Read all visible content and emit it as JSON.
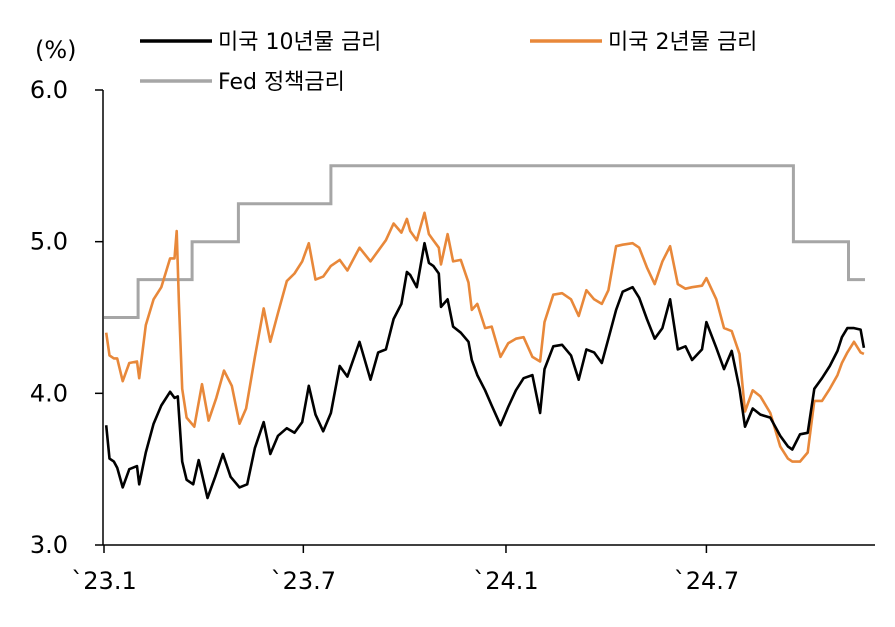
{
  "chart_data": {
    "type": "line",
    "title": "",
    "unit_label": "(%)",
    "ylim": [
      3.0,
      6.0
    ],
    "yticks": [
      "3.0",
      "4.0",
      "5.0",
      "6.0"
    ],
    "xlim": [
      "2023-01-01",
      "2024-11-22"
    ],
    "xticks": [
      {
        "date": "2023-01-01",
        "label": "`23.1"
      },
      {
        "date": "2023-07-01",
        "label": "`23.7"
      },
      {
        "date": "2024-01-01",
        "label": "`24.1"
      },
      {
        "date": "2024-07-01",
        "label": "`24.7"
      }
    ],
    "grid": false,
    "legend_position": "top",
    "series": [
      {
        "name": "미국 10년물 금리",
        "color": "#000000",
        "points": [
          [
            "2023-01-03",
            3.79
          ],
          [
            "2023-01-06",
            3.57
          ],
          [
            "2023-01-10",
            3.55
          ],
          [
            "2023-01-13",
            3.51
          ],
          [
            "2023-01-18",
            3.38
          ],
          [
            "2023-01-24",
            3.5
          ],
          [
            "2023-01-31",
            3.52
          ],
          [
            "2023-02-02",
            3.4
          ],
          [
            "2023-02-08",
            3.61
          ],
          [
            "2023-02-15",
            3.8
          ],
          [
            "2023-02-22",
            3.92
          ],
          [
            "2023-03-02",
            4.01
          ],
          [
            "2023-03-06",
            3.97
          ],
          [
            "2023-03-09",
            3.98
          ],
          [
            "2023-03-13",
            3.55
          ],
          [
            "2023-03-17",
            3.43
          ],
          [
            "2023-03-23",
            3.4
          ],
          [
            "2023-03-28",
            3.56
          ],
          [
            "2023-04-05",
            3.31
          ],
          [
            "2023-04-12",
            3.45
          ],
          [
            "2023-04-19",
            3.6
          ],
          [
            "2023-04-26",
            3.45
          ],
          [
            "2023-05-04",
            3.38
          ],
          [
            "2023-05-11",
            3.4
          ],
          [
            "2023-05-18",
            3.64
          ],
          [
            "2023-05-26",
            3.81
          ],
          [
            "2023-06-01",
            3.6
          ],
          [
            "2023-06-08",
            3.72
          ],
          [
            "2023-06-16",
            3.77
          ],
          [
            "2023-06-23",
            3.74
          ],
          [
            "2023-06-30",
            3.81
          ],
          [
            "2023-07-06",
            4.05
          ],
          [
            "2023-07-12",
            3.86
          ],
          [
            "2023-07-19",
            3.75
          ],
          [
            "2023-07-26",
            3.87
          ],
          [
            "2023-08-03",
            4.18
          ],
          [
            "2023-08-10",
            4.11
          ],
          [
            "2023-08-21",
            4.34
          ],
          [
            "2023-08-31",
            4.09
          ],
          [
            "2023-09-07",
            4.27
          ],
          [
            "2023-09-14",
            4.29
          ],
          [
            "2023-09-21",
            4.49
          ],
          [
            "2023-09-28",
            4.59
          ],
          [
            "2023-10-03",
            4.8
          ],
          [
            "2023-10-06",
            4.78
          ],
          [
            "2023-10-12",
            4.7
          ],
          [
            "2023-10-19",
            4.99
          ],
          [
            "2023-10-23",
            4.86
          ],
          [
            "2023-10-27",
            4.84
          ],
          [
            "2023-11-01",
            4.79
          ],
          [
            "2023-11-03",
            4.57
          ],
          [
            "2023-11-09",
            4.62
          ],
          [
            "2023-11-14",
            4.44
          ],
          [
            "2023-11-21",
            4.4
          ],
          [
            "2023-11-28",
            4.34
          ],
          [
            "2023-12-01",
            4.22
          ],
          [
            "2023-12-06",
            4.12
          ],
          [
            "2023-12-13",
            4.02
          ],
          [
            "2023-12-19",
            3.92
          ],
          [
            "2023-12-27",
            3.79
          ],
          [
            "2024-01-03",
            3.91
          ],
          [
            "2024-01-10",
            4.02
          ],
          [
            "2024-01-17",
            4.1
          ],
          [
            "2024-01-25",
            4.12
          ],
          [
            "2024-02-01",
            3.87
          ],
          [
            "2024-02-05",
            4.16
          ],
          [
            "2024-02-13",
            4.31
          ],
          [
            "2024-02-21",
            4.32
          ],
          [
            "2024-02-29",
            4.25
          ],
          [
            "2024-03-07",
            4.09
          ],
          [
            "2024-03-14",
            4.29
          ],
          [
            "2024-03-21",
            4.27
          ],
          [
            "2024-03-28",
            4.2
          ],
          [
            "2024-04-03",
            4.36
          ],
          [
            "2024-04-10",
            4.55
          ],
          [
            "2024-04-16",
            4.67
          ],
          [
            "2024-04-25",
            4.7
          ],
          [
            "2024-05-01",
            4.63
          ],
          [
            "2024-05-08",
            4.49
          ],
          [
            "2024-05-15",
            4.36
          ],
          [
            "2024-05-22",
            4.43
          ],
          [
            "2024-05-29",
            4.62
          ],
          [
            "2024-06-05",
            4.29
          ],
          [
            "2024-06-12",
            4.31
          ],
          [
            "2024-06-18",
            4.22
          ],
          [
            "2024-06-27",
            4.29
          ],
          [
            "2024-07-01",
            4.47
          ],
          [
            "2024-07-10",
            4.3
          ],
          [
            "2024-07-17",
            4.16
          ],
          [
            "2024-07-24",
            4.28
          ],
          [
            "2024-07-31",
            4.03
          ],
          [
            "2024-08-05",
            3.78
          ],
          [
            "2024-08-12",
            3.9
          ],
          [
            "2024-08-19",
            3.86
          ],
          [
            "2024-08-28",
            3.84
          ],
          [
            "2024-09-06",
            3.72
          ],
          [
            "2024-09-13",
            3.65
          ],
          [
            "2024-09-17",
            3.63
          ],
          [
            "2024-09-24",
            3.73
          ],
          [
            "2024-10-01",
            3.74
          ],
          [
            "2024-10-07",
            4.03
          ],
          [
            "2024-10-14",
            4.1
          ],
          [
            "2024-10-21",
            4.18
          ],
          [
            "2024-10-28",
            4.28
          ],
          [
            "2024-11-01",
            4.37
          ],
          [
            "2024-11-06",
            4.43
          ],
          [
            "2024-11-12",
            4.43
          ],
          [
            "2024-11-18",
            4.42
          ],
          [
            "2024-11-21",
            4.3
          ]
        ]
      },
      {
        "name": "미국 2년물 금리",
        "color": "#E8883A",
        "points": [
          [
            "2023-01-03",
            4.4
          ],
          [
            "2023-01-06",
            4.25
          ],
          [
            "2023-01-10",
            4.23
          ],
          [
            "2023-01-13",
            4.23
          ],
          [
            "2023-01-18",
            4.08
          ],
          [
            "2023-01-24",
            4.2
          ],
          [
            "2023-01-31",
            4.21
          ],
          [
            "2023-02-02",
            4.1
          ],
          [
            "2023-02-08",
            4.45
          ],
          [
            "2023-02-15",
            4.62
          ],
          [
            "2023-02-22",
            4.7
          ],
          [
            "2023-03-02",
            4.89
          ],
          [
            "2023-03-06",
            4.89
          ],
          [
            "2023-03-08",
            5.07
          ],
          [
            "2023-03-10",
            4.6
          ],
          [
            "2023-03-13",
            4.03
          ],
          [
            "2023-03-17",
            3.84
          ],
          [
            "2023-03-24",
            3.78
          ],
          [
            "2023-03-31",
            4.06
          ],
          [
            "2023-04-06",
            3.82
          ],
          [
            "2023-04-13",
            3.97
          ],
          [
            "2023-04-20",
            4.15
          ],
          [
            "2023-04-27",
            4.05
          ],
          [
            "2023-05-04",
            3.8
          ],
          [
            "2023-05-10",
            3.9
          ],
          [
            "2023-05-18",
            4.24
          ],
          [
            "2023-05-26",
            4.56
          ],
          [
            "2023-06-01",
            4.34
          ],
          [
            "2023-06-08",
            4.53
          ],
          [
            "2023-06-16",
            4.74
          ],
          [
            "2023-06-23",
            4.79
          ],
          [
            "2023-06-30",
            4.87
          ],
          [
            "2023-07-06",
            4.99
          ],
          [
            "2023-07-12",
            4.75
          ],
          [
            "2023-07-19",
            4.77
          ],
          [
            "2023-07-26",
            4.84
          ],
          [
            "2023-08-03",
            4.88
          ],
          [
            "2023-08-10",
            4.81
          ],
          [
            "2023-08-21",
            4.96
          ],
          [
            "2023-08-31",
            4.87
          ],
          [
            "2023-09-07",
            4.94
          ],
          [
            "2023-09-14",
            5.01
          ],
          [
            "2023-09-21",
            5.12
          ],
          [
            "2023-09-28",
            5.06
          ],
          [
            "2023-10-03",
            5.15
          ],
          [
            "2023-10-06",
            5.07
          ],
          [
            "2023-10-12",
            5.01
          ],
          [
            "2023-10-19",
            5.19
          ],
          [
            "2023-10-23",
            5.05
          ],
          [
            "2023-10-27",
            5.01
          ],
          [
            "2023-11-01",
            4.96
          ],
          [
            "2023-11-03",
            4.85
          ],
          [
            "2023-11-09",
            5.05
          ],
          [
            "2023-11-14",
            4.87
          ],
          [
            "2023-11-21",
            4.88
          ],
          [
            "2023-11-28",
            4.73
          ],
          [
            "2023-12-01",
            4.55
          ],
          [
            "2023-12-06",
            4.59
          ],
          [
            "2023-12-13",
            4.43
          ],
          [
            "2023-12-19",
            4.44
          ],
          [
            "2023-12-27",
            4.24
          ],
          [
            "2024-01-03",
            4.33
          ],
          [
            "2024-01-10",
            4.36
          ],
          [
            "2024-01-17",
            4.37
          ],
          [
            "2024-01-25",
            4.24
          ],
          [
            "2024-02-01",
            4.21
          ],
          [
            "2024-02-05",
            4.47
          ],
          [
            "2024-02-13",
            4.65
          ],
          [
            "2024-02-21",
            4.66
          ],
          [
            "2024-02-29",
            4.62
          ],
          [
            "2024-03-07",
            4.51
          ],
          [
            "2024-03-14",
            4.68
          ],
          [
            "2024-03-21",
            4.62
          ],
          [
            "2024-03-28",
            4.59
          ],
          [
            "2024-04-03",
            4.68
          ],
          [
            "2024-04-10",
            4.97
          ],
          [
            "2024-04-16",
            4.98
          ],
          [
            "2024-04-25",
            4.99
          ],
          [
            "2024-05-01",
            4.96
          ],
          [
            "2024-05-08",
            4.83
          ],
          [
            "2024-05-15",
            4.72
          ],
          [
            "2024-05-22",
            4.87
          ],
          [
            "2024-05-29",
            4.97
          ],
          [
            "2024-06-05",
            4.72
          ],
          [
            "2024-06-12",
            4.69
          ],
          [
            "2024-06-18",
            4.7
          ],
          [
            "2024-06-27",
            4.71
          ],
          [
            "2024-07-01",
            4.76
          ],
          [
            "2024-07-10",
            4.62
          ],
          [
            "2024-07-17",
            4.43
          ],
          [
            "2024-07-24",
            4.41
          ],
          [
            "2024-07-31",
            4.26
          ],
          [
            "2024-08-05",
            3.88
          ],
          [
            "2024-08-12",
            4.02
          ],
          [
            "2024-08-19",
            3.98
          ],
          [
            "2024-08-28",
            3.87
          ],
          [
            "2024-09-06",
            3.65
          ],
          [
            "2024-09-13",
            3.57
          ],
          [
            "2024-09-17",
            3.55
          ],
          [
            "2024-09-24",
            3.55
          ],
          [
            "2024-10-01",
            3.61
          ],
          [
            "2024-10-07",
            3.95
          ],
          [
            "2024-10-14",
            3.95
          ],
          [
            "2024-10-21",
            4.03
          ],
          [
            "2024-10-28",
            4.12
          ],
          [
            "2024-11-01",
            4.2
          ],
          [
            "2024-11-06",
            4.27
          ],
          [
            "2024-11-12",
            4.34
          ],
          [
            "2024-11-18",
            4.27
          ],
          [
            "2024-11-21",
            4.26
          ]
        ]
      },
      {
        "name": "Fed 정책금리",
        "color": "#A6A6A6",
        "step": true,
        "points": [
          [
            "2023-01-01",
            4.5
          ],
          [
            "2023-02-01",
            4.75
          ],
          [
            "2023-03-22",
            5.0
          ],
          [
            "2023-05-03",
            5.25
          ],
          [
            "2023-07-26",
            5.5
          ],
          [
            "2024-09-18",
            5.0
          ],
          [
            "2024-11-07",
            4.75
          ],
          [
            "2024-11-22",
            4.75
          ]
        ]
      }
    ]
  }
}
